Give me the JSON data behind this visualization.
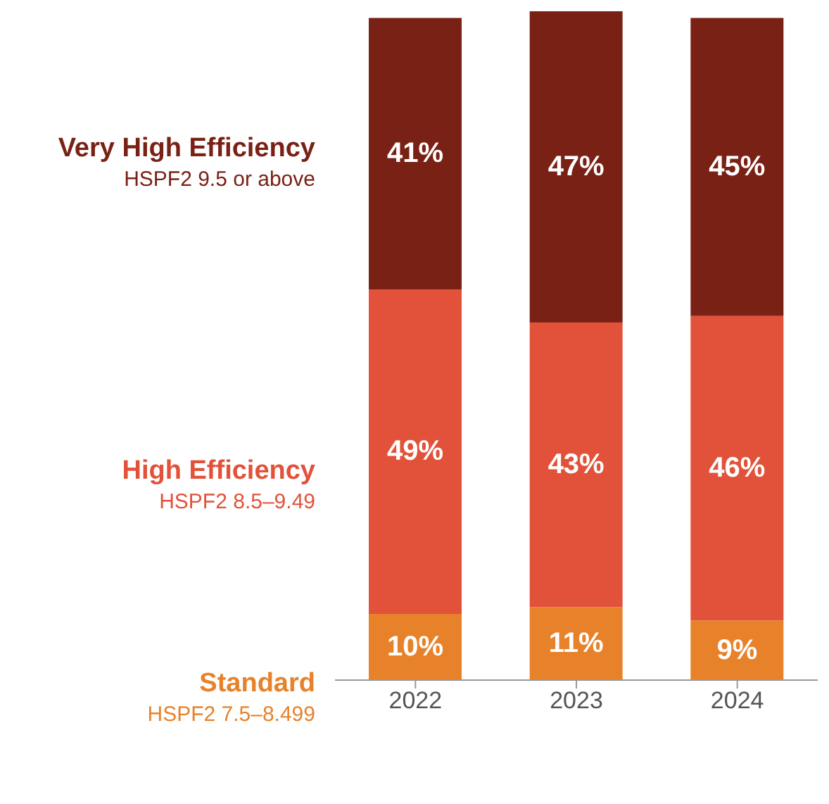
{
  "chart_data": {
    "type": "bar",
    "stacked": true,
    "categories": [
      "2022",
      "2023",
      "2024"
    ],
    "series": [
      {
        "name": "Standard",
        "color": "#e8822a",
        "values": [
          10,
          11,
          9
        ],
        "value_labels": [
          "10%",
          "11%",
          "9%"
        ]
      },
      {
        "name": "High Efficiency",
        "color": "#e2523a",
        "values": [
          49,
          43,
          46
        ],
        "value_labels": [
          "49%",
          "43%",
          "46%"
        ]
      },
      {
        "name": "Very High Efficiency",
        "color": "#7a2116",
        "values": [
          41,
          47,
          45
        ],
        "value_labels": [
          "41%",
          "47%",
          "45%"
        ]
      }
    ],
    "annotations": [
      "HSPF2 7.5–8.499",
      "HSPF2 8.5–9.49",
      "HSPF2 9.5 or above"
    ],
    "legend": false
  }
}
